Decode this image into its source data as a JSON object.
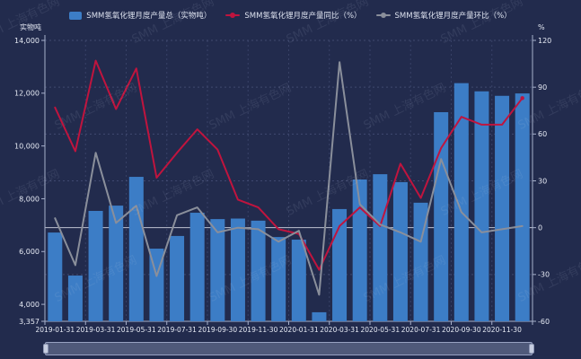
{
  "watermark": {
    "text": "SMM 上海有色网"
  },
  "colors": {
    "background": "#222b4d",
    "bar": "#3c7dc6",
    "yoy_line": "#c0143e",
    "mom_line": "#8a8f9b",
    "axis_line": "#a7b0cb",
    "grid_line": "#4a547c",
    "zero_line": "#d9dde8",
    "tick_text": "#e6eaf4"
  },
  "legend": [
    {
      "label": "SMM氢氧化锂月度产量总（实物吨）",
      "type": "bar",
      "color": "#3c7dc6"
    },
    {
      "label": "SMM氢氧化锂月度产量同比（%）",
      "type": "line",
      "color": "#c0143e"
    },
    {
      "label": "SMM氢氧化锂月度产量环比（%）",
      "type": "line",
      "color": "#8a8f9b"
    }
  ],
  "axes": {
    "left": {
      "name": "实物吨",
      "ticks": [
        "14,000",
        "12,000",
        "10,000",
        "8,000",
        "6,000",
        "4,000",
        "3,357"
      ],
      "tick_values": [
        14000,
        12000,
        10000,
        8000,
        6000,
        4000,
        3357
      ]
    },
    "right": {
      "name": "%",
      "ticks": [
        "120",
        "90",
        "60",
        "30",
        "0",
        "-30",
        "-60"
      ],
      "tick_values": [
        120,
        90,
        60,
        30,
        0,
        -30,
        -60
      ]
    },
    "x_labels": [
      "2019-01-31",
      "2019-03-31",
      "2019-05-31",
      "2019-07-31",
      "2019-09-30",
      "2019-11-30",
      "2020-01-31",
      "2020-03-31",
      "2020-05-31",
      "2020-07-31",
      "2020-09-30",
      "2020-11-30"
    ]
  },
  "chart_data": {
    "type": "bar",
    "title": "",
    "categories": [
      "2019-01-31",
      "2019-02-28",
      "2019-03-31",
      "2019-04-30",
      "2019-05-31",
      "2019-06-30",
      "2019-07-31",
      "2019-08-31",
      "2019-09-30",
      "2019-10-31",
      "2019-11-30",
      "2019-12-31",
      "2020-01-31",
      "2020-02-29",
      "2020-03-31",
      "2020-04-30",
      "2020-05-31",
      "2020-06-30",
      "2020-07-31",
      "2020-08-31",
      "2020-09-30",
      "2020-10-31",
      "2020-11-30",
      "2020-12-31"
    ],
    "series": [
      {
        "name": "SMM氢氧化锂月度产量总（实物吨）",
        "type": "bar",
        "axis": "left",
        "color": "#3c7dc6",
        "values": [
          6720,
          5090,
          7540,
          7740,
          8830,
          6110,
          6590,
          7470,
          7230,
          7250,
          7170,
          6550,
          6450,
          3700,
          7610,
          8730,
          8930,
          8630,
          7850,
          11280,
          12380,
          12070,
          11900,
          11990
        ]
      },
      {
        "name": "SMM氢氧化锂月度产量同比（%）",
        "type": "line",
        "axis": "right",
        "color": "#c0143e",
        "values": [
          77,
          49,
          107,
          76,
          102,
          32,
          48,
          63,
          50,
          18,
          13,
          -1,
          -4,
          -27,
          1,
          13,
          1,
          41,
          19,
          51,
          71,
          66,
          66,
          83
        ]
      },
      {
        "name": "SMM氢氧化锂月度产量环比（%）",
        "type": "line",
        "axis": "right",
        "color": "#8a8f9b",
        "values": [
          6,
          -24,
          48,
          3,
          14,
          -31,
          8,
          13,
          -3,
          0,
          -1,
          -9,
          -2,
          -43,
          106,
          15,
          2,
          -3,
          -9,
          44,
          10,
          -3,
          -1,
          1
        ]
      }
    ],
    "xlabel": "",
    "ylabel_left": "实物吨",
    "ylabel_right": "%",
    "ylim_left": [
      3357,
      14000
    ],
    "ylim_right": [
      -60,
      120
    ],
    "grid": true,
    "legend_position": "top"
  }
}
